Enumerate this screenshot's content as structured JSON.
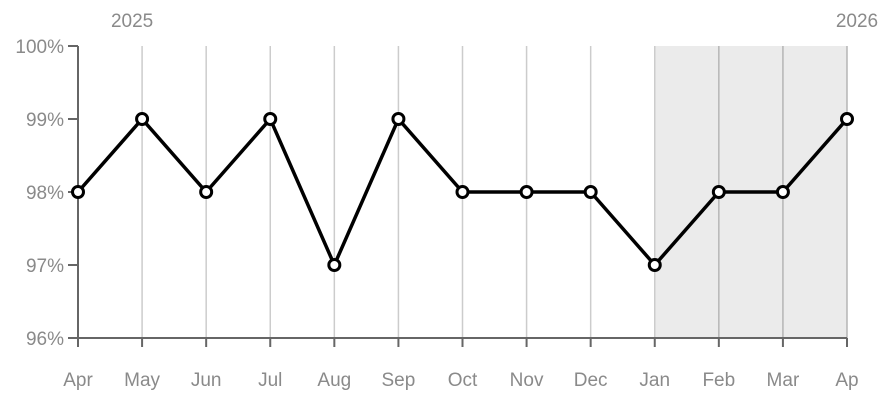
{
  "chart_data": {
    "type": "line",
    "title": "",
    "xlabel": "",
    "ylabel": "",
    "years": [
      "2025",
      "2026"
    ],
    "categories": [
      "Apr",
      "May",
      "Jun",
      "Jul",
      "Aug",
      "Sep",
      "Oct",
      "Nov",
      "Dec",
      "Jan",
      "Feb",
      "Mar",
      "Ap"
    ],
    "series": [
      {
        "values": [
          98,
          99,
          98,
          99,
          97,
          99,
          98,
          98,
          98,
          97,
          98,
          98,
          99
        ]
      }
    ],
    "ylim": [
      96,
      100
    ],
    "y_ticks": [
      100,
      99,
      98,
      97,
      96
    ],
    "y_tick_labels": [
      "100%",
      "99%",
      "98%",
      "97%",
      "96%"
    ],
    "shaded_range": [
      "Jan",
      "Ap"
    ],
    "grid": "vertical",
    "colors": {
      "line": "#000000",
      "marker_fill": "#ffffff",
      "grid": "#cccccc",
      "axis": "#666666",
      "shade": "#ebebeb",
      "text": "#8a8a8a"
    }
  }
}
